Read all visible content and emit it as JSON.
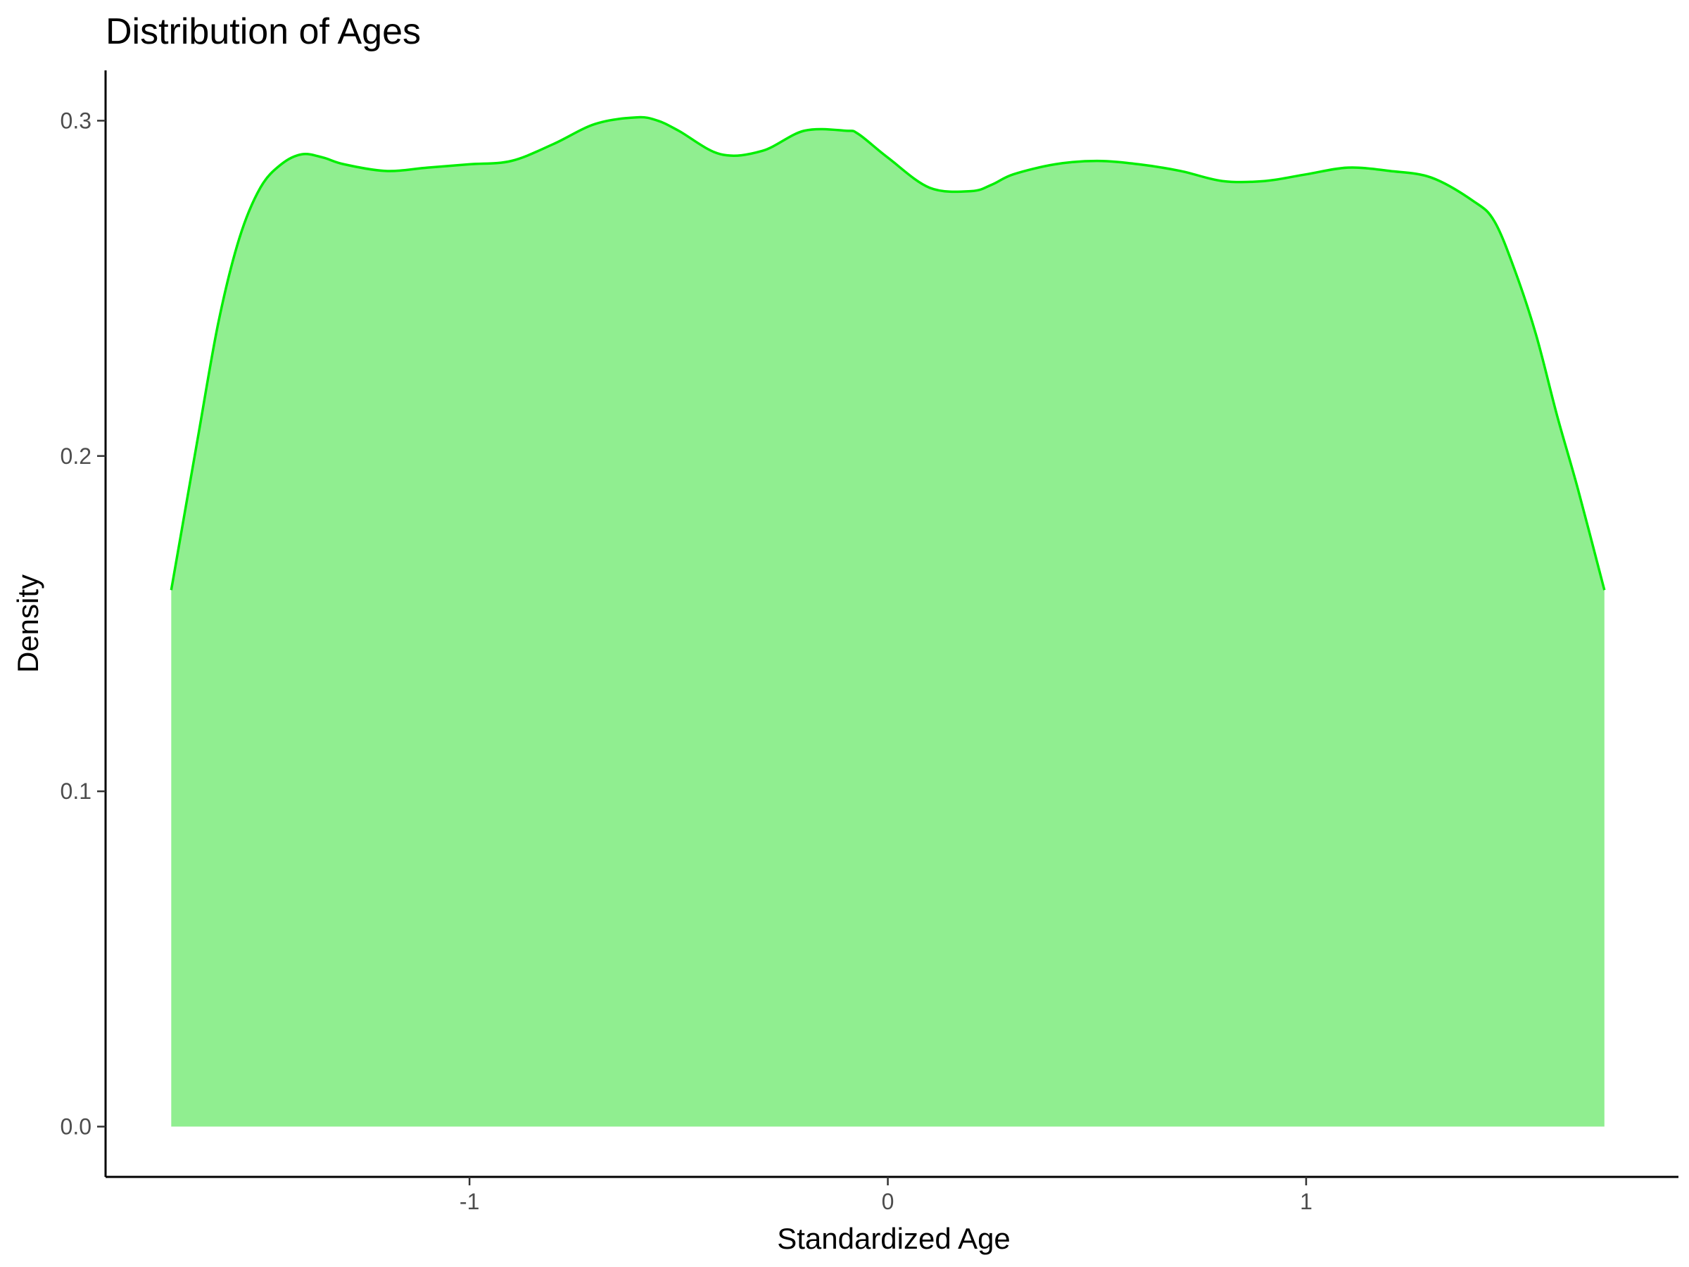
{
  "chart_data": {
    "type": "area",
    "title": "Distribution of Ages",
    "xlabel": "Standardized Age",
    "ylabel": "Density",
    "xlim": [
      -1.87,
      1.89
    ],
    "ylim": [
      -0.015,
      0.315
    ],
    "x_ticks": [
      {
        "value": -1,
        "label": "-1"
      },
      {
        "value": 0,
        "label": "0"
      },
      {
        "value": 1,
        "label": "1"
      }
    ],
    "y_ticks": [
      {
        "value": 0.0,
        "label": "0.0"
      },
      {
        "value": 0.1,
        "label": "0.1"
      },
      {
        "value": 0.2,
        "label": "0.2"
      },
      {
        "value": 0.3,
        "label": "0.3"
      }
    ],
    "grid": false,
    "legend": "none",
    "fill_color": "#90EE90",
    "line_color": "#00EE00",
    "series": [
      {
        "x": [
          -1.713,
          -1.65,
          -1.6,
          -1.55,
          -1.5,
          -1.45,
          -1.4,
          -1.35,
          -1.3,
          -1.2,
          -1.1,
          -1.0,
          -0.9,
          -0.8,
          -0.7,
          -0.6,
          -0.55,
          -0.5,
          -0.4,
          -0.3,
          -0.2,
          -0.1,
          -0.07,
          0.0,
          0.1,
          0.2,
          0.25,
          0.3,
          0.4,
          0.5,
          0.6,
          0.7,
          0.8,
          0.9,
          1.0,
          1.1,
          1.2,
          1.3,
          1.4,
          1.45,
          1.5,
          1.55,
          1.6,
          1.65,
          1.713
        ],
        "y": [
          0.16,
          0.205,
          0.24,
          0.265,
          0.28,
          0.287,
          0.29,
          0.289,
          0.287,
          0.285,
          0.286,
          0.287,
          0.288,
          0.293,
          0.299,
          0.301,
          0.3,
          0.297,
          0.29,
          0.291,
          0.297,
          0.297,
          0.296,
          0.289,
          0.28,
          0.279,
          0.281,
          0.284,
          0.287,
          0.288,
          0.287,
          0.285,
          0.282,
          0.282,
          0.284,
          0.286,
          0.285,
          0.283,
          0.276,
          0.27,
          0.255,
          0.236,
          0.212,
          0.19,
          0.16
        ]
      }
    ]
  }
}
